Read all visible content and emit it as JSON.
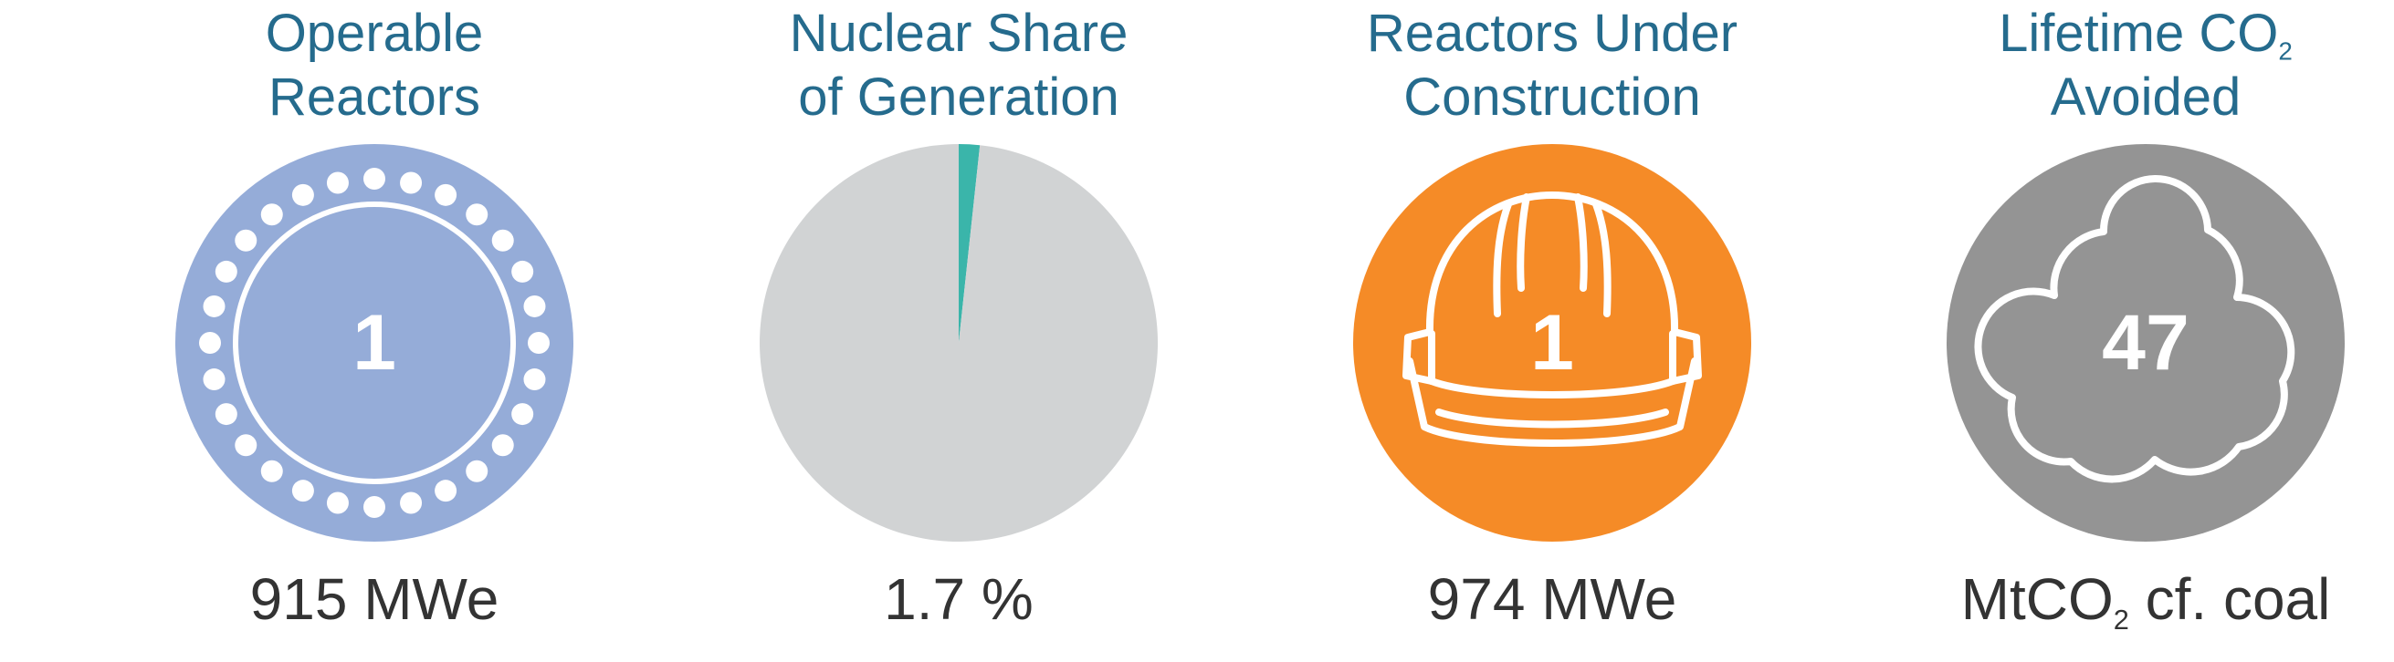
{
  "operable": {
    "title_line1": "Operable",
    "title_line2": "Reactors",
    "count": "1",
    "capacity": "915 MWe",
    "color": "#95acd8"
  },
  "share": {
    "title_line1": "Nuclear Share",
    "title_line2": "of Generation",
    "value": "1.7 %",
    "chart_data": {
      "type": "pie",
      "values": [
        1.7,
        98.3
      ],
      "colors": [
        "#3ab5aa",
        "#d1d3d4"
      ]
    }
  },
  "construction": {
    "title_line1": "Reactors Under",
    "title_line2": "Construction",
    "count": "1",
    "capacity": "974 MWe",
    "color": "#f58b27"
  },
  "co2": {
    "title_line1_main": "Lifetime CO",
    "title_line1_sub": "2",
    "title_line2": "Avoided",
    "count": "47",
    "unit_main": "MtCO",
    "unit_sub": "2",
    "unit_rest": " cf. coal",
    "color": "#949494"
  },
  "icons": {
    "operable": "reactor-ring-icon",
    "construction": "hard-hat-icon",
    "co2": "cloud-icon"
  }
}
